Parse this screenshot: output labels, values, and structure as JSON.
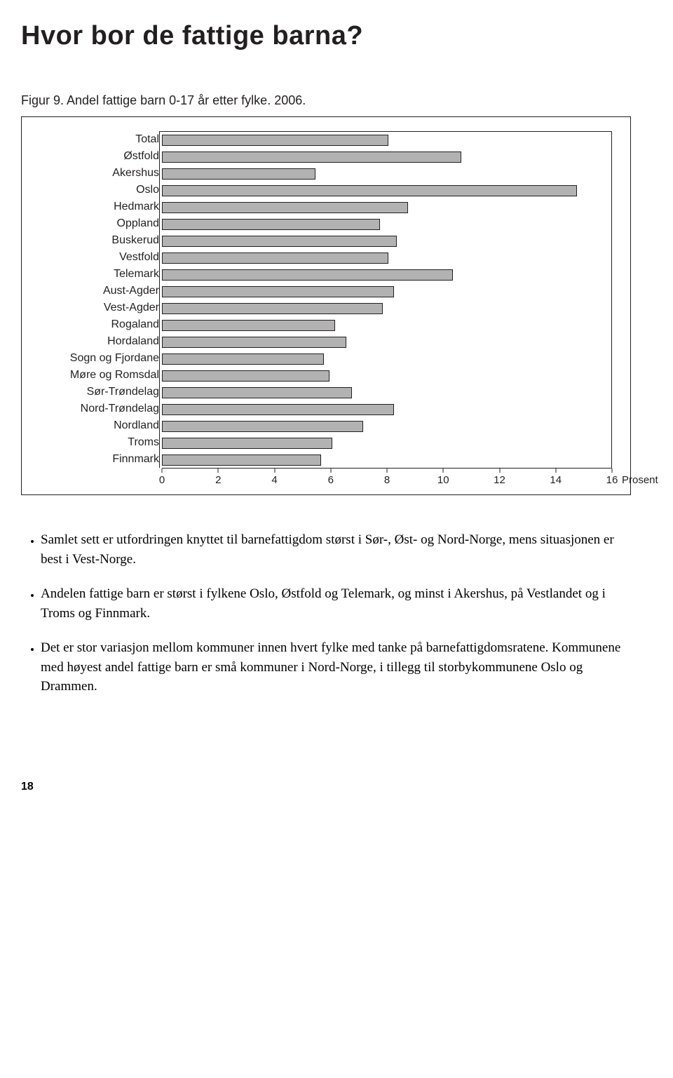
{
  "title": "Hvor bor de fattige barna?",
  "caption": "Figur 9. Andel fattige barn 0-17 år etter fylke. 2006.",
  "chart": {
    "type": "bar-horizontal",
    "xlim": [
      0,
      16
    ],
    "xticks": [
      0,
      2,
      4,
      6,
      8,
      10,
      12,
      14,
      16
    ],
    "axis_title": "Prosent",
    "bar_color": "#b2b2b2",
    "bar_border": "#231f20",
    "frame_color": "#231f20",
    "background_color": "#ffffff",
    "label_fontsize": 16,
    "tick_fontsize": 15,
    "categories": [
      {
        "label": "Total",
        "value": 8.0
      },
      {
        "label": "Østfold",
        "value": 10.6
      },
      {
        "label": "Akershus",
        "value": 5.4
      },
      {
        "label": "Oslo",
        "value": 14.7
      },
      {
        "label": "Hedmark",
        "value": 8.7
      },
      {
        "label": "Oppland",
        "value": 7.7
      },
      {
        "label": "Buskerud",
        "value": 8.3
      },
      {
        "label": "Vestfold",
        "value": 8.0
      },
      {
        "label": "Telemark",
        "value": 10.3
      },
      {
        "label": "Aust-Agder",
        "value": 8.2
      },
      {
        "label": "Vest-Agder",
        "value": 7.8
      },
      {
        "label": "Rogaland",
        "value": 6.1
      },
      {
        "label": "Hordaland",
        "value": 6.5
      },
      {
        "label": "Sogn og Fjordane",
        "value": 5.7
      },
      {
        "label": "Møre og Romsdal",
        "value": 5.9
      },
      {
        "label": "Sør-Trøndelag",
        "value": 6.7
      },
      {
        "label": "Nord-Trøndelag",
        "value": 8.2
      },
      {
        "label": "Nordland",
        "value": 7.1
      },
      {
        "label": "Troms",
        "value": 6.0
      },
      {
        "label": "Finnmark",
        "value": 5.6
      }
    ]
  },
  "bullets": [
    "Samlet sett er utfordringen knyttet til barnefattigdom størst i Sør-, Øst- og Nord-Norge, mens situasjonen er best i Vest-Norge.",
    "Andelen fattige barn er størst i fylkene Oslo, Østfold og Telemark, og minst i Akershus, på Vestlandet og i Troms og Finnmark.",
    "Det er stor variasjon mellom kommuner innen hvert fylke med tanke på barnefattigdomsratene. Kommunene med høyest andel fattige barn er små kommuner i Nord-Norge, i tillegg til storbykommunene Oslo og Drammen."
  ],
  "page_number": "18"
}
